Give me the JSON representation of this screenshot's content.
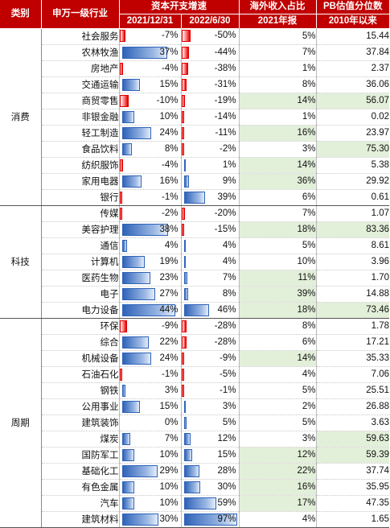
{
  "headers": {
    "category": "类别",
    "industry": "申万一级行业",
    "capex": "资本开支增速",
    "capex_2021": "2021/12/31",
    "capex_2022": "2022/6/30",
    "overseas": "海外收入占比",
    "overseas_sub": "2021年报",
    "pb": "PB估值分位数",
    "pb_sub": "2010年以来"
  },
  "colors": {
    "header_bg": "#c00000",
    "positive_bar": "#2f63b8",
    "negative_bar": "#e00000",
    "highlight_bg": "#e2efd9"
  },
  "groups": [
    {
      "name": "消费",
      "rows": [
        {
          "industry": "社会服务",
          "c2021": "-7%",
          "c2021v": -7,
          "c2022": "-50%",
          "c2022v": -50,
          "overseas": "5%",
          "overseas_hl": false,
          "pb": "15.44",
          "pb_hl": false
        },
        {
          "industry": "农林牧渔",
          "c2021": "37%",
          "c2021v": 37,
          "c2022": "-44%",
          "c2022v": -44,
          "overseas": "7%",
          "overseas_hl": false,
          "pb": "37.84",
          "pb_hl": false
        },
        {
          "industry": "房地产",
          "c2021": "-4%",
          "c2021v": -4,
          "c2022": "-38%",
          "c2022v": -38,
          "overseas": "1%",
          "overseas_hl": false,
          "pb": "2.37",
          "pb_hl": false
        },
        {
          "industry": "交通运输",
          "c2021": "15%",
          "c2021v": 15,
          "c2022": "-31%",
          "c2022v": -31,
          "overseas": "8%",
          "overseas_hl": false,
          "pb": "36.06",
          "pb_hl": false
        },
        {
          "industry": "商贸零售",
          "c2021": "-10%",
          "c2021v": -10,
          "c2022": "-19%",
          "c2022v": -19,
          "overseas": "14%",
          "overseas_hl": true,
          "pb": "56.07",
          "pb_hl": true
        },
        {
          "industry": "非银金融",
          "c2021": "10%",
          "c2021v": 10,
          "c2022": "-14%",
          "c2022v": -14,
          "overseas": "1%",
          "overseas_hl": false,
          "pb": "0.02",
          "pb_hl": false
        },
        {
          "industry": "轻工制造",
          "c2021": "24%",
          "c2021v": 24,
          "c2022": "-11%",
          "c2022v": -11,
          "overseas": "16%",
          "overseas_hl": true,
          "pb": "23.97",
          "pb_hl": false
        },
        {
          "industry": "食品饮料",
          "c2021": "8%",
          "c2021v": 8,
          "c2022": "-2%",
          "c2022v": -2,
          "overseas": "3%",
          "overseas_hl": false,
          "pb": "75.30",
          "pb_hl": true
        },
        {
          "industry": "纺织服饰",
          "c2021": "-4%",
          "c2021v": -4,
          "c2022": "1%",
          "c2022v": 1,
          "overseas": "14%",
          "overseas_hl": true,
          "pb": "5.38",
          "pb_hl": false
        },
        {
          "industry": "家用电器",
          "c2021": "16%",
          "c2021v": 16,
          "c2022": "9%",
          "c2022v": 9,
          "overseas": "36%",
          "overseas_hl": true,
          "pb": "29.92",
          "pb_hl": false
        },
        {
          "industry": "银行",
          "c2021": "-1%",
          "c2021v": -1,
          "c2022": "39%",
          "c2022v": 39,
          "overseas": "6%",
          "overseas_hl": false,
          "pb": "0.61",
          "pb_hl": false
        }
      ]
    },
    {
      "name": "科技",
      "rows": [
        {
          "industry": "传媒",
          "c2021": "-2%",
          "c2021v": -2,
          "c2022": "-20%",
          "c2022v": -20,
          "overseas": "7%",
          "overseas_hl": false,
          "pb": "1.07",
          "pb_hl": false
        },
        {
          "industry": "美容护理",
          "c2021": "38%",
          "c2021v": 38,
          "c2022": "-15%",
          "c2022v": -15,
          "overseas": "18%",
          "overseas_hl": true,
          "pb": "83.36",
          "pb_hl": true
        },
        {
          "industry": "通信",
          "c2021": "4%",
          "c2021v": 4,
          "c2022": "4%",
          "c2022v": 4,
          "overseas": "5%",
          "overseas_hl": false,
          "pb": "8.61",
          "pb_hl": false
        },
        {
          "industry": "计算机",
          "c2021": "19%",
          "c2021v": 19,
          "c2022": "4%",
          "c2022v": 4,
          "overseas": "10%",
          "overseas_hl": false,
          "pb": "3.96",
          "pb_hl": false
        },
        {
          "industry": "医药生物",
          "c2021": "23%",
          "c2021v": 23,
          "c2022": "7%",
          "c2022v": 7,
          "overseas": "11%",
          "overseas_hl": true,
          "pb": "1.70",
          "pb_hl": false
        },
        {
          "industry": "电子",
          "c2021": "27%",
          "c2021v": 27,
          "c2022": "8%",
          "c2022v": 8,
          "overseas": "39%",
          "overseas_hl": true,
          "pb": "14.88",
          "pb_hl": false
        },
        {
          "industry": "电力设备",
          "c2021": "44%",
          "c2021v": 44,
          "c2022": "46%",
          "c2022v": 46,
          "overseas": "18%",
          "overseas_hl": true,
          "pb": "73.46",
          "pb_hl": true
        }
      ]
    },
    {
      "name": "周期",
      "rows": [
        {
          "industry": "环保",
          "c2021": "-9%",
          "c2021v": -9,
          "c2022": "-28%",
          "c2022v": -28,
          "overseas": "8%",
          "overseas_hl": false,
          "pb": "1.78",
          "pb_hl": false
        },
        {
          "industry": "综合",
          "c2021": "22%",
          "c2021v": 22,
          "c2022": "-28%",
          "c2022v": -28,
          "overseas": "6%",
          "overseas_hl": false,
          "pb": "17.21",
          "pb_hl": false
        },
        {
          "industry": "机械设备",
          "c2021": "24%",
          "c2021v": 24,
          "c2022": "-9%",
          "c2022v": -9,
          "overseas": "14%",
          "overseas_hl": true,
          "pb": "35.33",
          "pb_hl": false
        },
        {
          "industry": "石油石化",
          "c2021": "-1%",
          "c2021v": -1,
          "c2022": "-5%",
          "c2022v": -5,
          "overseas": "4%",
          "overseas_hl": false,
          "pb": "7.06",
          "pb_hl": false
        },
        {
          "industry": "钢铁",
          "c2021": "3%",
          "c2021v": 3,
          "c2022": "-1%",
          "c2022v": -1,
          "overseas": "5%",
          "overseas_hl": false,
          "pb": "25.51",
          "pb_hl": false
        },
        {
          "industry": "公用事业",
          "c2021": "15%",
          "c2021v": 15,
          "c2022": "3%",
          "c2022v": 3,
          "overseas": "2%",
          "overseas_hl": false,
          "pb": "26.88",
          "pb_hl": false
        },
        {
          "industry": "建筑装饰",
          "c2021": "0%",
          "c2021v": 0,
          "c2022": "5%",
          "c2022v": 5,
          "overseas": "5%",
          "overseas_hl": false,
          "pb": "3.63",
          "pb_hl": false
        },
        {
          "industry": "煤炭",
          "c2021": "7%",
          "c2021v": 7,
          "c2022": "12%",
          "c2022v": 12,
          "overseas": "3%",
          "overseas_hl": false,
          "pb": "59.63",
          "pb_hl": true
        },
        {
          "industry": "国防军工",
          "c2021": "10%",
          "c2021v": 10,
          "c2022": "15%",
          "c2022v": 15,
          "overseas": "12%",
          "overseas_hl": true,
          "pb": "59.39",
          "pb_hl": true
        },
        {
          "industry": "基础化工",
          "c2021": "29%",
          "c2021v": 29,
          "c2022": "28%",
          "c2022v": 28,
          "overseas": "22%",
          "overseas_hl": true,
          "pb": "37.74",
          "pb_hl": false
        },
        {
          "industry": "有色金属",
          "c2021": "10%",
          "c2021v": 10,
          "c2022": "30%",
          "c2022v": 30,
          "overseas": "16%",
          "overseas_hl": true,
          "pb": "35.95",
          "pb_hl": false
        },
        {
          "industry": "汽车",
          "c2021": "10%",
          "c2021v": 10,
          "c2022": "59%",
          "c2022v": 59,
          "overseas": "17%",
          "overseas_hl": true,
          "pb": "47.35",
          "pb_hl": false
        },
        {
          "industry": "建筑材料",
          "c2021": "30%",
          "c2021v": 30,
          "c2022": "97%",
          "c2022v": 97,
          "overseas": "4%",
          "overseas_hl": false,
          "pb": "1.65",
          "pb_hl": false
        }
      ]
    }
  ]
}
